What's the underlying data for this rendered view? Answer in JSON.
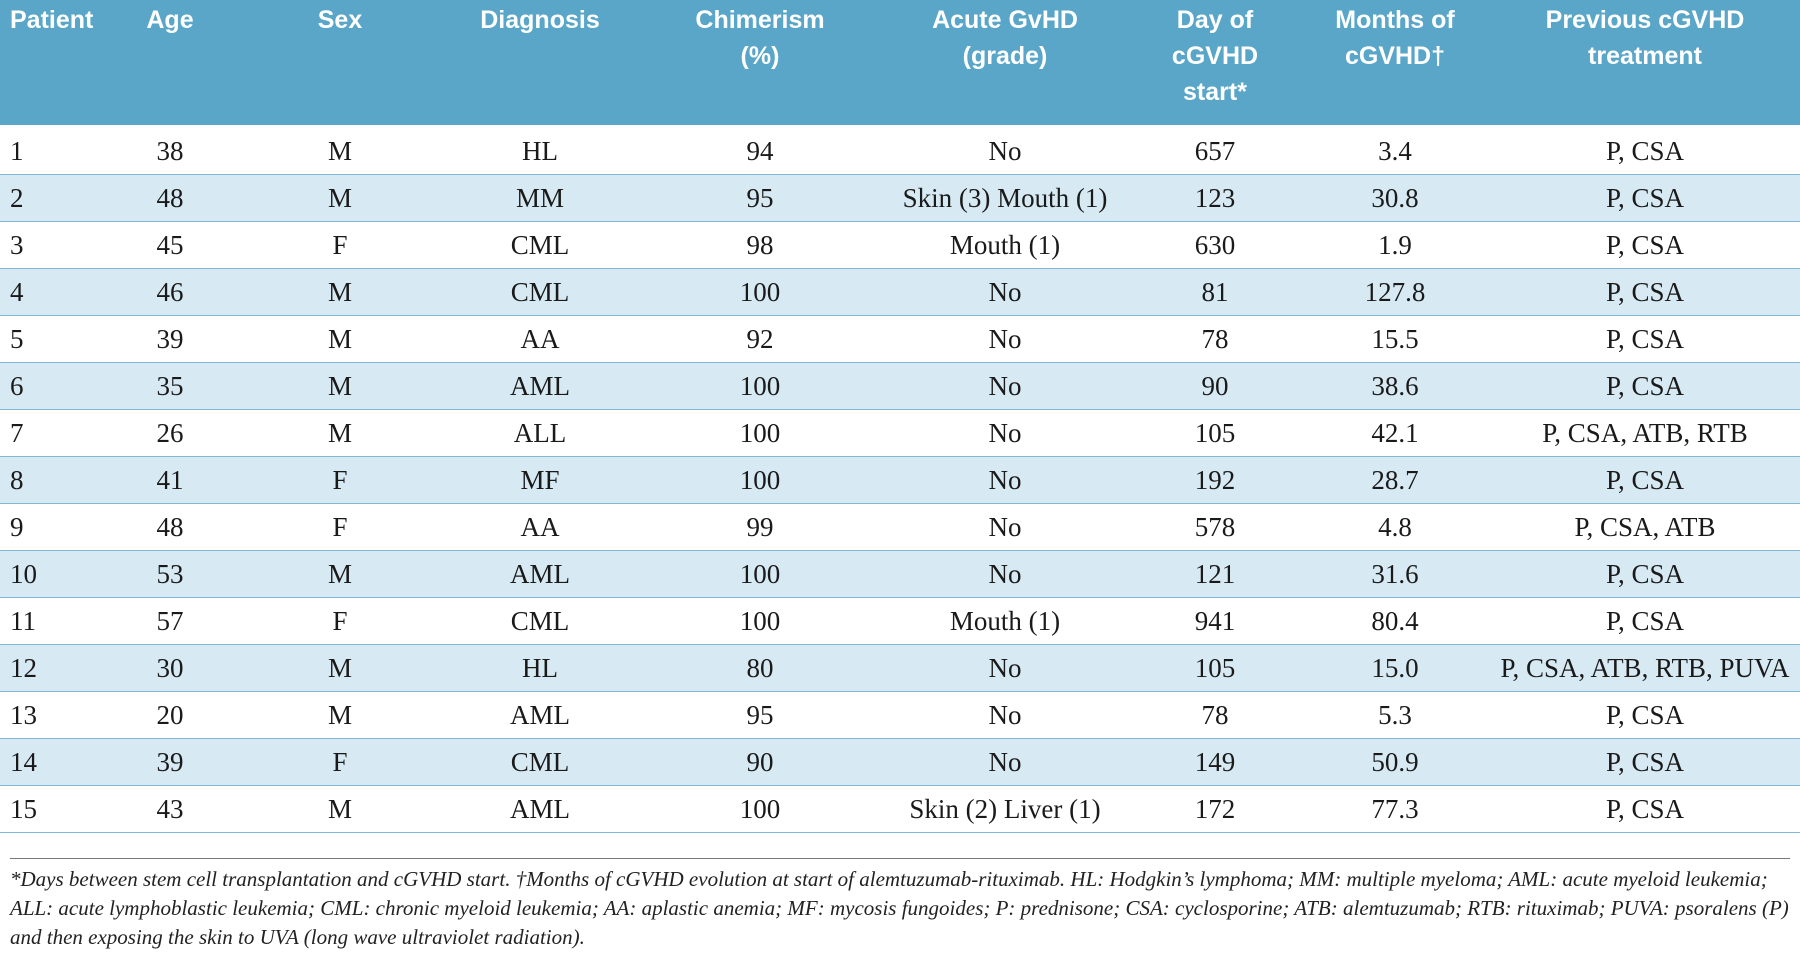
{
  "table": {
    "header": [
      [
        "Patient"
      ],
      [
        "Age"
      ],
      [
        "Sex"
      ],
      [
        "Diagnosis"
      ],
      [
        "Chimerism",
        "(%)"
      ],
      [
        "Acute GvHD",
        "(grade)"
      ],
      [
        "Day of",
        "cGVHD",
        "start*"
      ],
      [
        "Months of",
        "cGVHD†"
      ],
      [
        "Previous cGVHD",
        "treatment"
      ]
    ],
    "rows": [
      [
        "1",
        "38",
        "M",
        "HL",
        "94",
        "No",
        "657",
        "3.4",
        "P, CSA"
      ],
      [
        "2",
        "48",
        "M",
        "MM",
        "95",
        "Skin (3) Mouth (1)",
        "123",
        "30.8",
        "P, CSA"
      ],
      [
        "3",
        "45",
        "F",
        "CML",
        "98",
        "Mouth (1)",
        "630",
        "1.9",
        "P, CSA"
      ],
      [
        "4",
        "46",
        "M",
        "CML",
        "100",
        "No",
        "81",
        "127.8",
        "P, CSA"
      ],
      [
        "5",
        "39",
        "M",
        "AA",
        "92",
        "No",
        "78",
        "15.5",
        "P, CSA"
      ],
      [
        "6",
        "35",
        "M",
        "AML",
        "100",
        "No",
        "90",
        "38.6",
        "P, CSA"
      ],
      [
        "7",
        "26",
        "M",
        "ALL",
        "100",
        "No",
        "105",
        "42.1",
        "P, CSA, ATB, RTB"
      ],
      [
        "8",
        "41",
        "F",
        "MF",
        "100",
        "No",
        "192",
        "28.7",
        "P, CSA"
      ],
      [
        "9",
        "48",
        "F",
        "AA",
        "99",
        "No",
        "578",
        "4.8",
        "P, CSA, ATB"
      ],
      [
        "10",
        "53",
        "M",
        "AML",
        "100",
        "No",
        "121",
        "31.6",
        "P, CSA"
      ],
      [
        "11",
        "57",
        "F",
        "CML",
        "100",
        "Mouth (1)",
        "941",
        "80.4",
        "P, CSA"
      ],
      [
        "12",
        "30",
        "M",
        "HL",
        "80",
        "No",
        "105",
        "15.0",
        "P, CSA, ATB, RTB, PUVA"
      ],
      [
        "13",
        "20",
        "M",
        "AML",
        "95",
        "No",
        "78",
        "5.3",
        "P, CSA"
      ],
      [
        "14",
        "39",
        "F",
        "CML",
        "90",
        "No",
        "149",
        "50.9",
        "P, CSA"
      ],
      [
        "15",
        "43",
        "M",
        "AML",
        "100",
        "Skin (2) Liver (1)",
        "172",
        "77.3",
        "P, CSA"
      ]
    ]
  },
  "footnote": "*Days between stem cell transplantation and cGVHD start. †Months of cGVHD evolution at start of alemtuzumab-rituximab. HL: Hodgkin’s lymphoma; MM: multiple myeloma; AML: acute myeloid leukemia; ALL: acute lymphoblastic leukemia; CML: chronic myeloid leukemia; AA: aplastic anemia; MF: mycosis fungoides; P: prednisone; CSA: cyclosporine; ATB: alemtuzumab; RTB: rituximab; PUVA: psoralens (P) and then exposing the skin to UVA (long wave ultraviolet radiation)."
}
